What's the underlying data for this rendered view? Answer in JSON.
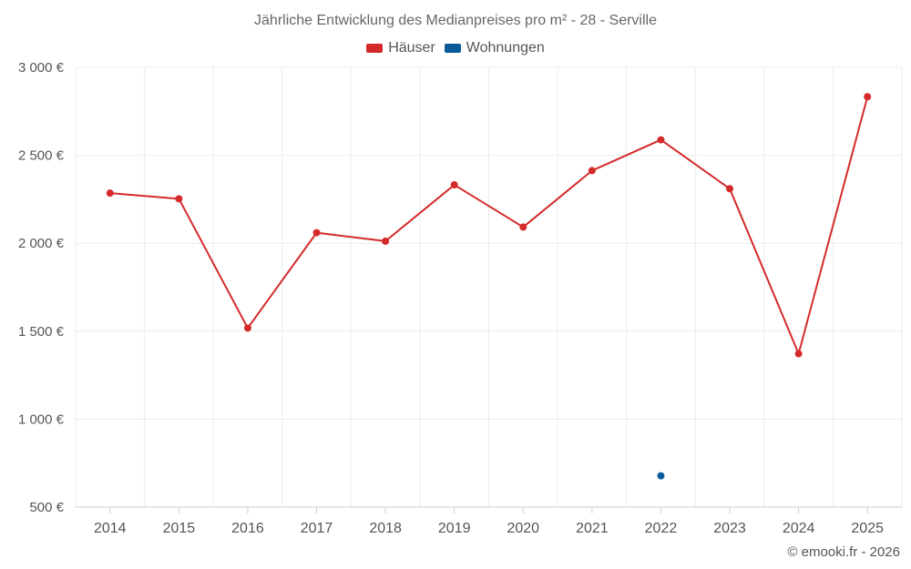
{
  "chart_data": {
    "type": "line",
    "title": "Jährliche Entwicklung des Medianpreises pro m² - 28 - Serville",
    "categories": [
      "2014",
      "2015",
      "2016",
      "2017",
      "2018",
      "2019",
      "2020",
      "2021",
      "2022",
      "2023",
      "2024",
      "2025"
    ],
    "series": [
      {
        "name": "Häuser",
        "color": "#d42a2a",
        "values": [
          2285,
          2253,
          1518,
          2060,
          2012,
          2332,
          2092,
          2413,
          2588,
          2310,
          1372,
          2833
        ]
      },
      {
        "name": "Wohnungen",
        "color": "#0b5b99",
        "values": [
          null,
          null,
          null,
          null,
          null,
          null,
          null,
          null,
          678,
          null,
          null,
          null
        ]
      }
    ],
    "ylim": [
      500,
      3000
    ],
    "yticks": [
      3000,
      2500,
      2000,
      1500,
      1000,
      500
    ],
    "ytick_labels": [
      "3 000 €",
      "2 500 €",
      "2 000 €",
      "1 500 €",
      "1 000 €",
      "500 €"
    ],
    "xlabel": "",
    "ylabel": "",
    "grid": true,
    "legend_position": "top-center"
  },
  "footer": {
    "copyright": "© emooki.fr - 2026"
  }
}
